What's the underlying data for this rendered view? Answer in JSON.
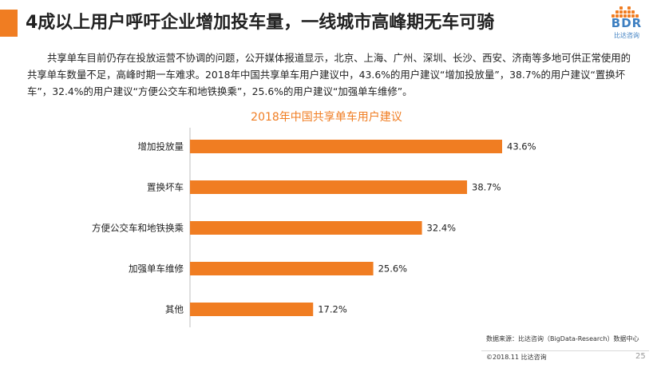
{
  "header": {
    "title": "4成以上用户呼吁企业增加投车量，一线城市高峰期无车可骑"
  },
  "logo": {
    "text": "BDR",
    "subtext": "比达咨询"
  },
  "intro": {
    "text": "共享单车目前仍存在投放运营不协调的问题，公开媒体报道显示，北京、上海、广州、深圳、长沙、西安、济南等多地可供正常使用的共享单车数量不足，高峰时期一车难求。2018年中国共享单车用户建议中，43.6%的用户建议“增加投放量”，38.7%的用户建议“置换坏车”，32.4%的用户建议“方便公交车和地铁换乘”，25.6%的用户建议“加强单车维修”。"
  },
  "chart_data": {
    "type": "bar",
    "orientation": "horizontal",
    "title": "2018年中国共享单车用户建议",
    "categories": [
      "增加投放量",
      "置换坏车",
      "方便公交车和地铁换乘",
      "加强单车维修",
      "其他"
    ],
    "values": [
      43.6,
      38.7,
      32.4,
      25.6,
      17.2
    ],
    "value_labels": [
      "43.6%",
      "38.7%",
      "32.4%",
      "25.6%",
      "17.2%"
    ],
    "unit": "%",
    "xlim": [
      0,
      50
    ],
    "grid": false,
    "bar_color": "#f07d22"
  },
  "footer": {
    "source": "数据来源：比达咨询（BigData-Research）数据中心",
    "copyright": "©2018.11 比达咨询",
    "page": "25"
  },
  "colors": {
    "accent": "#f07d22",
    "logo_blue": "#3d7fc1"
  }
}
